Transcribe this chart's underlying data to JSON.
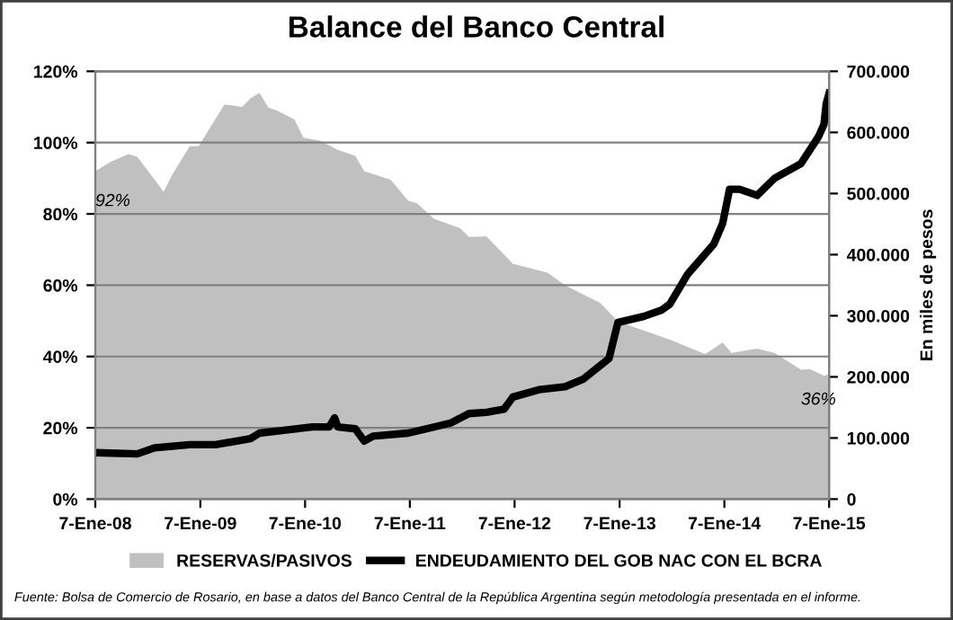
{
  "chart_data": {
    "type": "area",
    "title": "Balance del Banco Central",
    "y2label": "En miles de pesos",
    "xlim": [
      "2008-01-07",
      "2015-01-07"
    ],
    "xticks": [
      {
        "value": "2008-01-07",
        "label": "7-Ene-08"
      },
      {
        "value": "2009-01-07",
        "label": "7-Ene-09"
      },
      {
        "value": "2010-01-07",
        "label": "7-Ene-10"
      },
      {
        "value": "2011-01-07",
        "label": "7-Ene-11"
      },
      {
        "value": "2012-01-07",
        "label": "7-Ene-12"
      },
      {
        "value": "2013-01-07",
        "label": "7-Ene-13"
      },
      {
        "value": "2014-01-07",
        "label": "7-Ene-14"
      },
      {
        "value": "2015-01-07",
        "label": "7-Ene-15"
      }
    ],
    "ylim": [
      0,
      120
    ],
    "yticks": [
      {
        "value": 0,
        "label": "0%"
      },
      {
        "value": 20,
        "label": "20%"
      },
      {
        "value": 40,
        "label": "40%"
      },
      {
        "value": 60,
        "label": "60%"
      },
      {
        "value": 80,
        "label": "80%"
      },
      {
        "value": 100,
        "label": "100%"
      },
      {
        "value": 120,
        "label": "120%"
      }
    ],
    "y2lim": [
      0,
      700000
    ],
    "y2ticks": [
      {
        "value": 0,
        "label": "0"
      },
      {
        "value": 100000,
        "label": "100.000"
      },
      {
        "value": 200000,
        "label": "200.000"
      },
      {
        "value": 300000,
        "label": "300.000"
      },
      {
        "value": 400000,
        "label": "400.000"
      },
      {
        "value": 500000,
        "label": "500.000"
      },
      {
        "value": 600000,
        "label": "600.000"
      },
      {
        "value": 700000,
        "label": "700.000"
      }
    ],
    "grid": "y",
    "legend": "bottom",
    "series": [
      {
        "name": "RESERVAS/PASIVOS",
        "color": "#c0c0c0",
        "x": [
          "2008-01-07",
          "2008-03",
          "2008-05",
          "2008-06",
          "2008-08",
          "2008-09",
          "2008-10",
          "2008-12",
          "2009-01",
          "2009-04",
          "2009-06",
          "2009-07",
          "2009-08",
          "2009-09",
          "2009-10",
          "2009-12",
          "2010-01",
          "2010-03",
          "2010-05",
          "2010-07",
          "2010-08",
          "2010-11",
          "2011-01",
          "2011-02",
          "2011-04",
          "2011-07",
          "2011-08",
          "2011-10",
          "2012-01",
          "2012-05",
          "2012-07",
          "2012-11",
          "2013-01",
          "2013-04",
          "2013-07",
          "2013-11",
          "2014-01",
          "2014-02",
          "2014-05",
          "2014-07",
          "2014-10",
          "2014-11",
          "2014-12-20",
          "2015-01-07"
        ],
        "values": [
          92,
          94.6,
          96.8,
          96,
          89.6,
          86.2,
          91,
          99,
          99,
          110.7,
          110,
          112.4,
          114,
          109.8,
          109,
          106.5,
          101.4,
          100.5,
          98,
          96.3,
          92,
          89.6,
          83.7,
          83,
          78.6,
          76,
          73.5,
          73.7,
          66,
          63.5,
          60,
          55,
          49.8,
          47.3,
          44.7,
          40.7,
          43.9,
          41,
          42.2,
          41,
          36.3,
          36.5,
          34.6,
          35
        ]
      },
      {
        "name": "ENDEUDAMIENTO DEL GOB NAC CON EL BCRA",
        "type": "line",
        "axis": "y2",
        "color": "#000000",
        "x": [
          "2008-01-07",
          "2008-06",
          "2008-08",
          "2008-12",
          "2009-03",
          "2009-07",
          "2009-08",
          "2009-11",
          "2010-02",
          "2010-04",
          "2010-04-20",
          "2010-05",
          "2010-07",
          "2010-08",
          "2010-09",
          "2011-01",
          "2011-04",
          "2011-06",
          "2011-08",
          "2011-10",
          "2011-12",
          "2012-01",
          "2012-04",
          "2012-07",
          "2012-09",
          "2012-12",
          "2013-01",
          "2013-04",
          "2013-06",
          "2013-07",
          "2013-09",
          "2013-12",
          "2014-01",
          "2014-01-25",
          "2014-03",
          "2014-05",
          "2014-07",
          "2014-10",
          "2014-12",
          "2014-12-20",
          "2014-12-28",
          "2015-01-07"
        ],
        "values": [
          76000,
          74000,
          84000,
          89000,
          89000,
          99000,
          108000,
          113000,
          118000,
          118000,
          133000,
          118000,
          115000,
          95000,
          103000,
          108000,
          118000,
          125000,
          140000,
          142000,
          147000,
          167000,
          179000,
          184000,
          196000,
          230000,
          289000,
          299000,
          309000,
          319000,
          368000,
          417000,
          451000,
          507000,
          507000,
          497000,
          525000,
          549000,
          593000,
          613000,
          647000,
          664000
        ]
      }
    ],
    "annotations": [
      {
        "text": "92%",
        "x": "2008-01-07",
        "y": 92
      },
      {
        "text": "36%",
        "x": "2014-10",
        "y": 36.3
      },
      "Fuente: Bolsa de Comercio de Rosario, en base a datos del Banco Central de la República Argentina según metodología presentada en el informe."
    ]
  }
}
